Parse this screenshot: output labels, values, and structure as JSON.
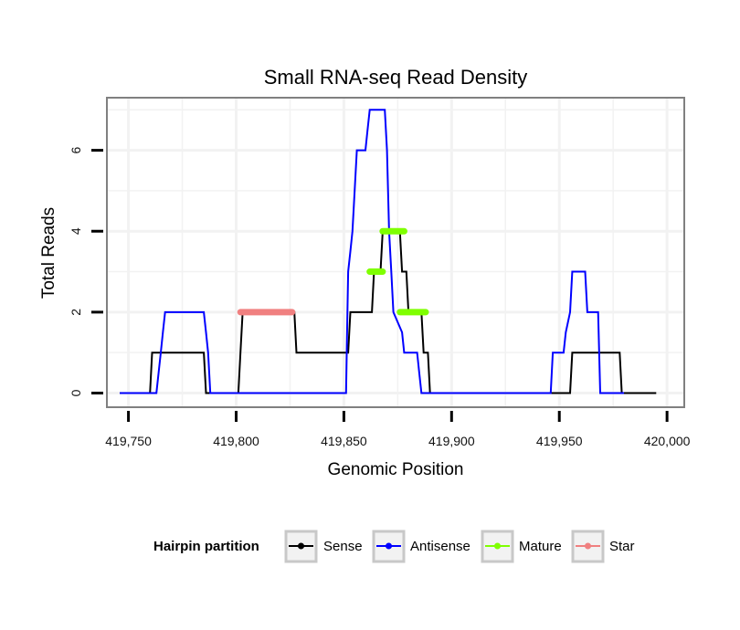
{
  "chart_data": {
    "type": "line",
    "title": "Small RNA-seq Read Density",
    "xlabel": "Genomic Position",
    "ylabel": "Total Reads",
    "xlim": [
      419740,
      420008
    ],
    "ylim": [
      -0.35,
      7.3
    ],
    "x_ticks": [
      419750,
      419800,
      419850,
      419900,
      419950,
      420000
    ],
    "x_tick_labels": [
      "419,750",
      "419,800",
      "419,850",
      "419,900",
      "419,950",
      "420,000"
    ],
    "y_ticks": [
      0,
      2,
      4,
      6
    ],
    "y_tick_labels": [
      "0",
      "2",
      "4",
      "6"
    ],
    "grid": true,
    "legend": {
      "title": "Hairpin partition",
      "position": "bottom",
      "entries": [
        {
          "label": "Sense",
          "color": "#000000"
        },
        {
          "label": "Antisense",
          "color": "#0000ff"
        },
        {
          "label": "Mature",
          "color": "#7fff00"
        },
        {
          "label": "Star",
          "color": "#f08080"
        }
      ]
    },
    "series": [
      {
        "name": "Sense",
        "color": "#000000",
        "x": [
          419746,
          419760,
          419761,
          419785,
          419786,
          419801,
          419802,
          419803,
          419827,
          419828,
          419851,
          419852,
          419853,
          419862,
          419863,
          419864,
          419867,
          419868,
          419876,
          419877,
          419879,
          419880,
          419886,
          419887,
          419889,
          419890,
          419954,
          419955,
          419956,
          419978,
          419979,
          419995
        ],
        "y": [
          0,
          0,
          1,
          1,
          0,
          0,
          1,
          2,
          2,
          1,
          1,
          1,
          2,
          2,
          2,
          3,
          3,
          4,
          4,
          3,
          3,
          2,
          2,
          1,
          1,
          0,
          0,
          0,
          1,
          1,
          0,
          0
        ]
      },
      {
        "name": "Antisense",
        "color": "#0000ff",
        "x": [
          419746,
          419763,
          419764,
          419765,
          419766,
          419767,
          419785,
          419786,
          419787,
          419788,
          419851,
          419851.5,
          419852,
          419853,
          419854,
          419855,
          419856,
          419860,
          419861,
          419862,
          419864,
          419869,
          419870,
          419871,
          419872,
          419873,
          419877,
          419878,
          419879,
          419884,
          419885,
          419886,
          419946,
          419947,
          419952,
          419953,
          419955,
          419956,
          419962,
          419963,
          419968,
          419969,
          419979,
          419980
        ],
        "y": [
          0,
          0,
          0.5,
          1,
          1.5,
          2,
          2,
          1.5,
          1,
          0,
          0,
          1.5,
          3,
          3.5,
          4,
          5,
          6,
          6,
          6.5,
          7,
          7,
          7,
          6,
          4,
          3,
          2,
          1.5,
          1,
          1,
          1,
          0.5,
          0,
          0,
          1,
          1,
          1.5,
          2,
          3,
          3,
          2,
          2,
          0,
          0,
          0
        ]
      }
    ],
    "segments": [
      {
        "name": "Star",
        "color": "#f08080",
        "x_start": 419802,
        "x_end": 419826,
        "y": 2
      },
      {
        "name": "Mature",
        "color": "#7fff00",
        "x_start": 419862,
        "x_end": 419868,
        "y": 3
      },
      {
        "name": "Mature",
        "color": "#7fff00",
        "x_start": 419868,
        "x_end": 419878,
        "y": 4
      },
      {
        "name": "Mature",
        "color": "#7fff00",
        "x_start": 419876,
        "x_end": 419888,
        "y": 2
      }
    ]
  }
}
